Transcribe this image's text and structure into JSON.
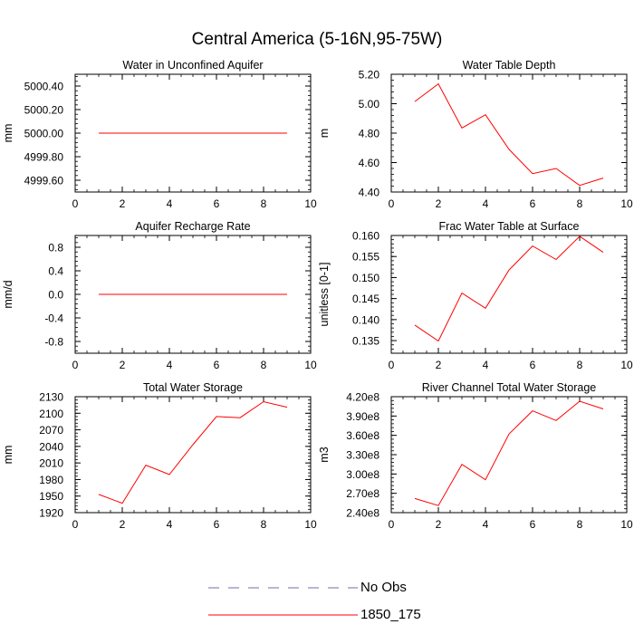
{
  "title": "Central America (5-16N,95-75W)",
  "chart_data": [
    {
      "type": "line",
      "title": "Water in Unconfined Aquifer",
      "ylabel": "mm",
      "xlabel": "",
      "xlim": [
        0,
        10
      ],
      "ylim": [
        4999.5,
        5000.5
      ],
      "x_ticks": [
        0,
        2,
        4,
        6,
        8,
        10
      ],
      "y_ticks": [
        4999.6,
        4999.8,
        5000.0,
        5000.2,
        5000.4
      ],
      "y_tick_labels": [
        "4999.60",
        "4999.80",
        "5000.00",
        "5000.20",
        "5000.40"
      ],
      "series": [
        {
          "name": "1850_175",
          "color": "#ff0000",
          "x": [
            1,
            2,
            3,
            4,
            5,
            6,
            7,
            8,
            9
          ],
          "values": [
            5000,
            5000,
            5000,
            5000,
            5000,
            5000,
            5000,
            5000,
            5000
          ]
        }
      ]
    },
    {
      "type": "line",
      "title": "Water Table Depth",
      "ylabel": "m",
      "xlabel": "",
      "xlim": [
        0,
        10
      ],
      "ylim": [
        4.4,
        5.2
      ],
      "x_ticks": [
        0,
        2,
        4,
        6,
        8,
        10
      ],
      "y_ticks": [
        4.4,
        4.6,
        4.8,
        5.0,
        5.2
      ],
      "y_tick_labels": [
        "4.40",
        "4.60",
        "4.80",
        "5.00",
        "5.20"
      ],
      "series": [
        {
          "name": "1850_175",
          "color": "#ff0000",
          "x": [
            1,
            2,
            3,
            4,
            5,
            6,
            7,
            8,
            9
          ],
          "values": [
            5.015,
            5.135,
            4.835,
            4.925,
            4.69,
            4.525,
            4.56,
            4.445,
            4.495
          ]
        }
      ]
    },
    {
      "type": "line",
      "title": "Aquifer Recharge Rate",
      "ylabel": "mm/d",
      "xlabel": "",
      "xlim": [
        0,
        10
      ],
      "ylim": [
        -1.0,
        1.0
      ],
      "x_ticks": [
        0,
        2,
        4,
        6,
        8,
        10
      ],
      "y_ticks": [
        -0.8,
        -0.4,
        0.0,
        0.4,
        0.8
      ],
      "y_tick_labels": [
        "-0.8",
        "-0.4",
        "0.0",
        "0.4",
        "0.8"
      ],
      "series": [
        {
          "name": "1850_175",
          "color": "#ff0000",
          "x": [
            1,
            2,
            3,
            4,
            5,
            6,
            7,
            8,
            9
          ],
          "values": [
            0,
            0,
            0,
            0,
            0,
            0,
            0,
            0,
            0
          ]
        }
      ]
    },
    {
      "type": "line",
      "title": "Frac Water Table at Surface",
      "ylabel": "unitless [0-1]",
      "xlabel": "",
      "xlim": [
        0,
        10
      ],
      "ylim": [
        0.132,
        0.16
      ],
      "x_ticks": [
        0,
        2,
        4,
        6,
        8,
        10
      ],
      "y_ticks": [
        0.135,
        0.14,
        0.145,
        0.15,
        0.155,
        0.16
      ],
      "y_tick_labels": [
        "0.135",
        "0.140",
        "0.145",
        "0.150",
        "0.155",
        "0.160"
      ],
      "series": [
        {
          "name": "1850_175",
          "color": "#ff0000",
          "x": [
            1,
            2,
            3,
            4,
            5,
            6,
            7,
            8,
            9
          ],
          "values": [
            0.1387,
            0.1349,
            0.1463,
            0.1427,
            0.1518,
            0.1575,
            0.1543,
            0.1598,
            0.156
          ]
        }
      ]
    },
    {
      "type": "line",
      "title": "Total Water Storage",
      "ylabel": "mm",
      "xlabel": "",
      "xlim": [
        0,
        10
      ],
      "ylim": [
        1920,
        2130
      ],
      "x_ticks": [
        0,
        2,
        4,
        6,
        8,
        10
      ],
      "y_ticks": [
        1920,
        1950,
        1980,
        2010,
        2040,
        2070,
        2100,
        2130
      ],
      "y_tick_labels": [
        "1920",
        "1950",
        "1980",
        "2010",
        "2040",
        "2070",
        "2100",
        "2130"
      ],
      "series": [
        {
          "name": "1850_175",
          "color": "#ff0000",
          "x": [
            1,
            2,
            3,
            4,
            5,
            6,
            7,
            8,
            9
          ],
          "values": [
            1953,
            1937,
            2006,
            1989,
            2043,
            2094,
            2092,
            2121,
            2111
          ]
        }
      ]
    },
    {
      "type": "line",
      "title": "River Channel Total Water Storage",
      "ylabel": "m3",
      "xlabel": "",
      "xlim": [
        0,
        10
      ],
      "ylim": [
        240000000,
        420000000
      ],
      "x_ticks": [
        0,
        2,
        4,
        6,
        8,
        10
      ],
      "y_ticks": [
        240000000,
        270000000,
        300000000,
        330000000,
        360000000,
        390000000,
        420000000
      ],
      "y_tick_labels": [
        "2.40e8",
        "2.70e8",
        "3.00e8",
        "3.30e8",
        "3.60e8",
        "3.90e8",
        "4.20e8"
      ],
      "series": [
        {
          "name": "1850_175",
          "color": "#ff0000",
          "x": [
            1,
            2,
            3,
            4,
            5,
            6,
            7,
            8,
            9
          ],
          "values": [
            262000000,
            251000000,
            315000000,
            291000000,
            362000000,
            398000000,
            383000000,
            413000000,
            401000000
          ]
        }
      ]
    }
  ],
  "legend": {
    "placement": "bottom-center",
    "items": [
      {
        "label": "No Obs",
        "color": "#6e6ea8",
        "style": "dashed"
      },
      {
        "label": "1850_175",
        "color": "#ff0000",
        "style": "solid"
      }
    ]
  }
}
